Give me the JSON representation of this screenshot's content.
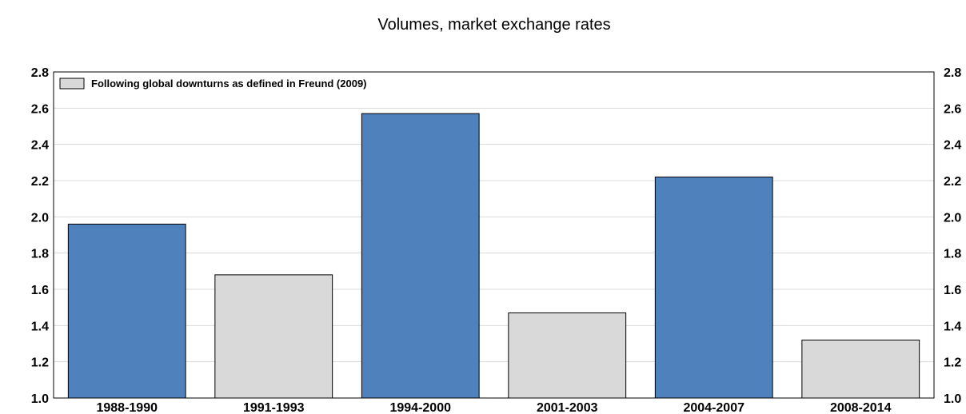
{
  "chart_data": {
    "type": "bar",
    "title": "Volumes, market exchange rates",
    "categories": [
      "1988-1990",
      "1991-1993",
      "1994-2000",
      "2001-2003",
      "2004-2007",
      "2008-2014"
    ],
    "values": [
      1.96,
      1.68,
      2.57,
      1.47,
      2.22,
      1.32
    ],
    "downturn": [
      false,
      true,
      false,
      true,
      false,
      true
    ],
    "ylim": [
      1.0,
      2.8
    ],
    "yticks": [
      "1.0",
      "1.2",
      "1.4",
      "1.6",
      "1.8",
      "2.0",
      "2.2",
      "2.4",
      "2.6",
      "2.8"
    ],
    "grid": true,
    "legend": {
      "label": "Following global downturns as defined in Freund (2009)",
      "placement": "top-left"
    },
    "colors": {
      "normal": "#4f81bd",
      "downturn": "#d9d9d9",
      "grid": "#d9d9d9",
      "border": "#000000"
    }
  }
}
